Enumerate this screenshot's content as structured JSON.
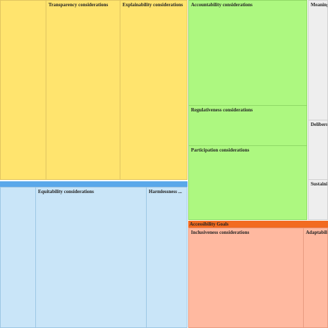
{
  "yellow": {
    "cells": [
      "Transparency considerations",
      "Explainability considerations"
    ]
  },
  "blue": {
    "cells": [
      "Equitability considerations",
      "Harmlessness ..."
    ]
  },
  "green": {
    "cells": [
      "Accountability considerations",
      "Regulativeness considerations",
      "Participation considerations"
    ]
  },
  "gray": {
    "cells": [
      "Meaning",
      "Deliberm",
      "Sustaini"
    ]
  },
  "orange": {
    "title": "Accessibility Goals",
    "cells": [
      "Inclusiveness considerations",
      "Adaptabili"
    ]
  }
}
